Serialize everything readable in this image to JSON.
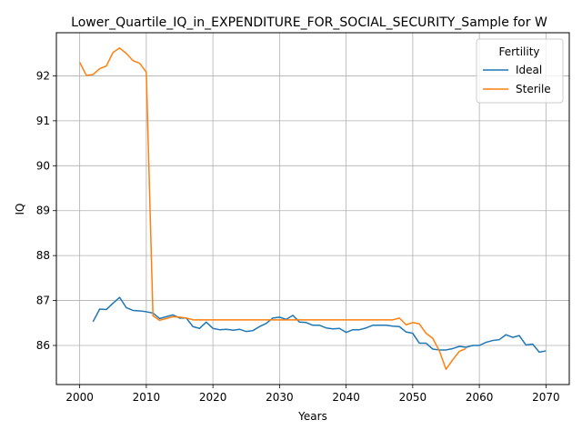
{
  "chart_data": {
    "type": "line",
    "title": "Lower_Quartile_IQ_in_EXPENDITURE_FOR_SOCIAL_SECURITY_Sample for W",
    "xlabel": "Years",
    "ylabel": "IQ",
    "xlim": [
      1996.5,
      2073.5
    ],
    "ylim": [
      85.13,
      92.96
    ],
    "xticks": [
      2000,
      2010,
      2020,
      2030,
      2040,
      2050,
      2060,
      2070
    ],
    "yticks": [
      86,
      87,
      88,
      89,
      90,
      91,
      92
    ],
    "grid": true,
    "legend": {
      "title": "Fertility",
      "placement": "top-right"
    },
    "series": [
      {
        "name": "Ideal",
        "color": "#1f77b4",
        "x": [
          2002,
          2003,
          2004,
          2005,
          2006,
          2007,
          2008,
          2009,
          2010,
          2011,
          2012,
          2013,
          2014,
          2015,
          2016,
          2017,
          2018,
          2019,
          2020,
          2021,
          2022,
          2023,
          2024,
          2025,
          2026,
          2027,
          2028,
          2029,
          2030,
          2031,
          2032,
          2033,
          2034,
          2035,
          2036,
          2037,
          2038,
          2039,
          2040,
          2041,
          2042,
          2043,
          2044,
          2045,
          2046,
          2047,
          2048,
          2049,
          2050,
          2051,
          2052,
          2053,
          2054,
          2055,
          2056,
          2057,
          2058,
          2059,
          2060,
          2061,
          2062,
          2063,
          2064,
          2065,
          2066,
          2067,
          2068,
          2069,
          2070
        ],
        "values": [
          86.53,
          86.81,
          86.8,
          86.94,
          87.07,
          86.84,
          86.78,
          86.77,
          86.75,
          86.72,
          86.6,
          86.64,
          86.68,
          86.61,
          86.61,
          86.42,
          86.38,
          86.52,
          86.38,
          86.35,
          86.36,
          86.34,
          86.36,
          86.31,
          86.33,
          86.42,
          86.49,
          86.61,
          86.63,
          86.58,
          86.67,
          86.52,
          86.51,
          86.45,
          86.45,
          86.39,
          86.37,
          86.38,
          86.29,
          86.35,
          86.35,
          86.39,
          86.45,
          86.45,
          86.45,
          86.43,
          86.42,
          86.3,
          86.27,
          86.05,
          86.05,
          85.92,
          85.9,
          85.9,
          85.93,
          85.98,
          85.96,
          86.0,
          86.0,
          86.07,
          86.11,
          86.13,
          86.24,
          86.18,
          86.22,
          86.01,
          86.03,
          85.85,
          85.88
        ]
      },
      {
        "name": "Sterile",
        "color": "#ff7f0e",
        "x": [
          2000,
          2001,
          2002,
          2003,
          2004,
          2005,
          2006,
          2007,
          2008,
          2009,
          2010,
          2011,
          2012,
          2013,
          2014,
          2015,
          2016,
          2017,
          2018,
          2019,
          2020,
          2021,
          2022,
          2023,
          2024,
          2025,
          2026,
          2027,
          2028,
          2029,
          2030,
          2031,
          2032,
          2033,
          2034,
          2035,
          2036,
          2037,
          2038,
          2039,
          2040,
          2041,
          2042,
          2043,
          2044,
          2045,
          2046,
          2047,
          2048,
          2049,
          2050,
          2051,
          2052,
          2053,
          2054,
          2055,
          2056,
          2057,
          2058
        ],
        "values": [
          92.3,
          92.01,
          92.03,
          92.16,
          92.22,
          92.52,
          92.62,
          92.5,
          92.34,
          92.28,
          92.08,
          86.66,
          86.56,
          86.6,
          86.64,
          86.63,
          86.61,
          86.57,
          86.57,
          86.57,
          86.57,
          86.57,
          86.57,
          86.57,
          86.57,
          86.57,
          86.57,
          86.57,
          86.57,
          86.57,
          86.57,
          86.57,
          86.57,
          86.57,
          86.57,
          86.57,
          86.57,
          86.57,
          86.57,
          86.57,
          86.57,
          86.57,
          86.57,
          86.57,
          86.57,
          86.57,
          86.57,
          86.57,
          86.61,
          86.46,
          86.51,
          86.48,
          86.27,
          86.16,
          85.88,
          85.47,
          85.68,
          85.87,
          85.93
        ]
      }
    ]
  }
}
